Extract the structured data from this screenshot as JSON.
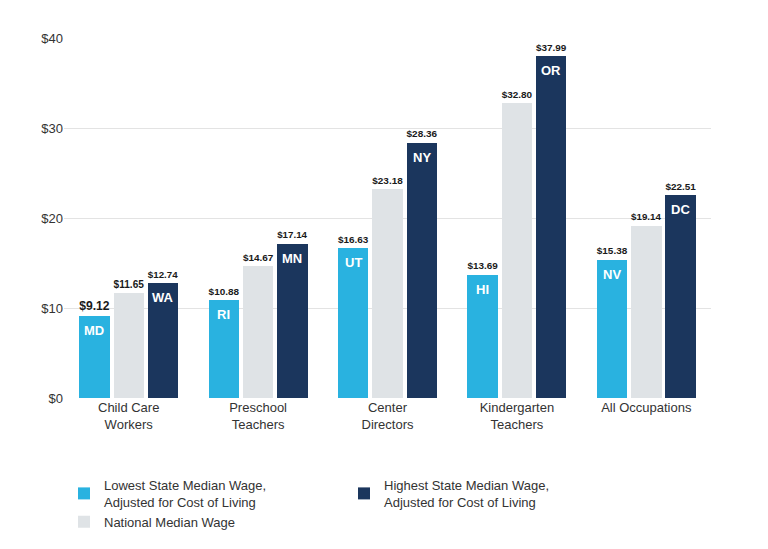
{
  "chart_data": {
    "type": "bar",
    "categories": [
      "Child Care Workers",
      "Preschool Teachers",
      "Center Directors",
      "Kindergarten Teachers",
      "All Occupations"
    ],
    "series": [
      {
        "name": "Lowest State Median Wage, Adjusted for Cost of Living",
        "color": "#29b2e0",
        "values": [
          9.12,
          10.88,
          16.63,
          13.69,
          15.38
        ],
        "value_labels": [
          "$9.12",
          "$10.88",
          "$16.63",
          "$13.69",
          "$15.38"
        ],
        "state_labels": [
          "MD",
          "RI",
          "UT",
          "HI",
          "NV"
        ]
      },
      {
        "name": "National Median Wage",
        "color": "#dfe3e6",
        "values": [
          11.65,
          14.67,
          23.18,
          32.8,
          19.14
        ],
        "value_labels": [
          "$11.65",
          "$14.67",
          "$23.18",
          "$32.80",
          "$19.14"
        ]
      },
      {
        "name": "Highest State Median Wage, Adjusted for Cost of Living",
        "color": "#1b365d",
        "values": [
          12.74,
          17.14,
          28.36,
          37.99,
          22.51
        ],
        "value_labels": [
          "$12.74",
          "$17.14",
          "$28.36",
          "$37.99",
          "$22.51"
        ],
        "state_labels": [
          "WA",
          "MN",
          "NY",
          "OR",
          "DC"
        ]
      }
    ],
    "ylim": [
      0,
      40
    ],
    "yticks": [
      {
        "value": 0,
        "label": "$0"
      },
      {
        "value": 10,
        "label": "$10"
      },
      {
        "value": 20,
        "label": "$20"
      },
      {
        "value": 30,
        "label": "$30"
      },
      {
        "value": 40,
        "label": "$40"
      }
    ],
    "grid": true,
    "data_labels": true,
    "legend": "bottom"
  }
}
